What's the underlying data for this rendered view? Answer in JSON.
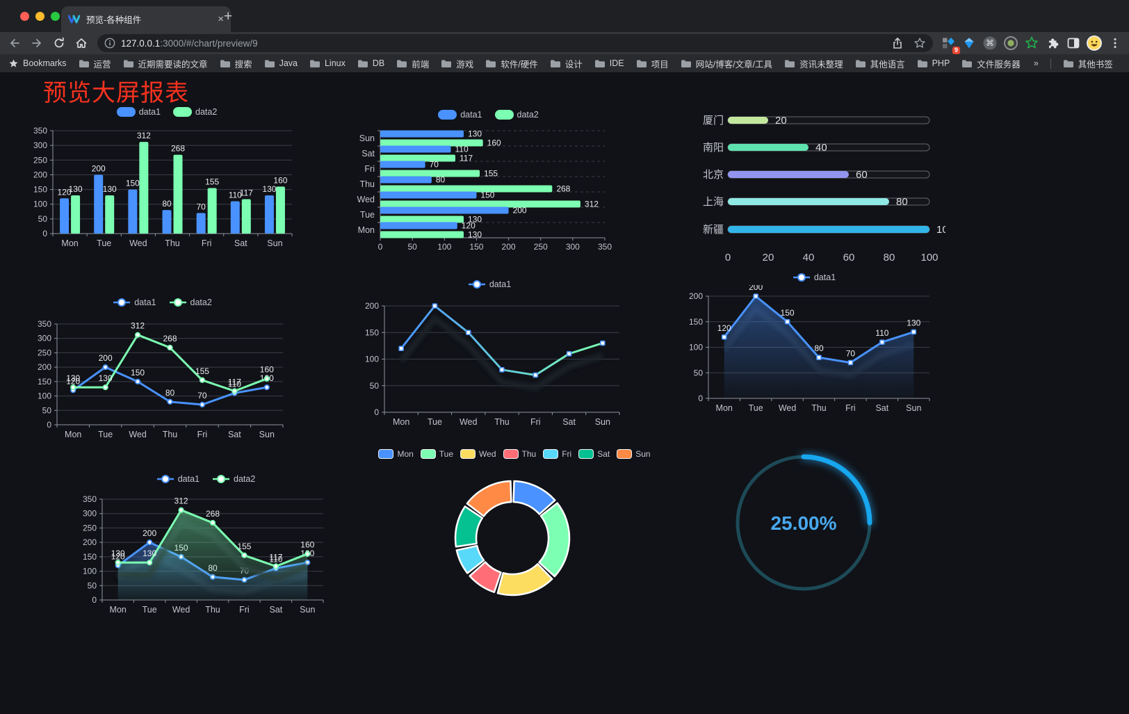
{
  "browser": {
    "tab": {
      "title": "预览-各种组件",
      "close_label": "×",
      "new_tab_label": "+"
    },
    "url": {
      "host": "127.0.0.1",
      "rest": ":3000/#/chart/preview/9"
    },
    "extension_badge": "9",
    "bookmarks_label": "Bookmarks",
    "bookmarks": [
      "运营",
      "近期需要读的文章",
      "搜索",
      "Java",
      "Linux",
      "DB",
      "前端",
      "游戏",
      "软件/硬件",
      "设计",
      "IDE",
      "项目",
      "网站/博客/文章/工具",
      "资讯未整理",
      "其他语言",
      "PHP",
      "文件服务器"
    ],
    "bookmarks_overflow": "»",
    "other_bookmarks": "其他书签"
  },
  "page": {
    "title": "预览大屏报表"
  },
  "colors": {
    "blue": "#4992ff",
    "green": "#7cffb2",
    "axis": "#9094a0",
    "grid": "#3d3f4a",
    "label": "#c3c5cd",
    "value": "#e9eaee",
    "title_red": "#f5321f",
    "gauge": "#17a7ee",
    "gauge_track": "#1d4a57",
    "gauge_text": "#49a9ef"
  },
  "chart_data": [
    {
      "id": "grouped-bar",
      "type": "bar",
      "categories": [
        "Mon",
        "Tue",
        "Wed",
        "Thu",
        "Fri",
        "Sat",
        "Sun"
      ],
      "series": [
        {
          "name": "data1",
          "color": "#4992ff",
          "values": [
            120,
            200,
            150,
            80,
            70,
            110,
            130
          ]
        },
        {
          "name": "data2",
          "color": "#7cffb2",
          "values": [
            130,
            130,
            312,
            268,
            155,
            117,
            160
          ]
        }
      ],
      "ylim": [
        0,
        350
      ],
      "yticks": [
        0,
        50,
        100,
        150,
        200,
        250,
        300,
        350
      ],
      "legend_position": "top",
      "show_labels": true
    },
    {
      "id": "horizontal-bar",
      "type": "hbar",
      "categories_bottom_to_top": [
        "Mon",
        "Tue",
        "Wed",
        "Thu",
        "Fri",
        "Sat",
        "Sun"
      ],
      "series": [
        {
          "name": "data1",
          "color": "#4992ff",
          "values": [
            120,
            200,
            150,
            80,
            70,
            110,
            130
          ]
        },
        {
          "name": "data2",
          "color": "#7cffb2",
          "values": [
            130,
            130,
            312,
            268,
            155,
            117,
            160
          ]
        }
      ],
      "xlim": [
        0,
        350
      ],
      "xticks": [
        0,
        50,
        100,
        150,
        200,
        250,
        300,
        350
      ],
      "legend_position": "top",
      "show_labels": true
    },
    {
      "id": "city-progress",
      "type": "progress",
      "max": 100,
      "items": [
        {
          "label": "厦门",
          "value": 20,
          "color": "#c4e79e"
        },
        {
          "label": "南阳",
          "value": 40,
          "color": "#5ee2ae"
        },
        {
          "label": "北京",
          "value": 60,
          "color": "#9295ef"
        },
        {
          "label": "上海",
          "value": 80,
          "color": "#8fe9e4"
        },
        {
          "label": "新疆",
          "value": 100,
          "color": "#31b5e9"
        }
      ],
      "xticks": [
        0,
        20,
        40,
        60,
        80,
        100
      ]
    },
    {
      "id": "dual-line",
      "type": "line",
      "categories": [
        "Mon",
        "Tue",
        "Wed",
        "Thu",
        "Fri",
        "Sat",
        "Sun"
      ],
      "series": [
        {
          "name": "data1",
          "color": "#4992ff",
          "symbol": "circle",
          "values": [
            120,
            200,
            150,
            80,
            70,
            110,
            130
          ]
        },
        {
          "name": "data2",
          "color": "#7cffb2",
          "symbol": "circle",
          "values": [
            130,
            130,
            312,
            268,
            155,
            117,
            160
          ]
        }
      ],
      "ylim": [
        0,
        350
      ],
      "yticks": [
        0,
        50,
        100,
        150,
        200,
        250,
        300,
        350
      ],
      "legend_position": "top",
      "show_labels": true,
      "shadow": false
    },
    {
      "id": "gradient-line",
      "type": "line",
      "categories": [
        "Mon",
        "Tue",
        "Wed",
        "Thu",
        "Fri",
        "Sat",
        "Sun"
      ],
      "series": [
        {
          "name": "data1",
          "color": "#4992ff",
          "color_end": "#7cffb2",
          "gradient": true,
          "symbol": "rect",
          "values": [
            120,
            200,
            150,
            80,
            70,
            110,
            130
          ]
        }
      ],
      "ylim": [
        0,
        200
      ],
      "yticks": [
        0,
        50,
        100,
        150,
        200
      ],
      "legend_position": "top",
      "show_labels": false,
      "shadow": true
    },
    {
      "id": "area-line",
      "type": "line",
      "categories": [
        "Mon",
        "Tue",
        "Wed",
        "Thu",
        "Fri",
        "Sat",
        "Sun"
      ],
      "series": [
        {
          "name": "data1",
          "color": "#4992ff",
          "area": true,
          "symbol": "rect",
          "values": [
            120,
            200,
            150,
            80,
            70,
            110,
            130
          ]
        }
      ],
      "ylim": [
        0,
        200
      ],
      "yticks": [
        0,
        50,
        100,
        150,
        200
      ],
      "legend_position": "top",
      "show_labels": true,
      "shadow": true
    },
    {
      "id": "dual-area",
      "type": "line",
      "categories": [
        "Mon",
        "Tue",
        "Wed",
        "Thu",
        "Fri",
        "Sat",
        "Sun"
      ],
      "series": [
        {
          "name": "data1",
          "color": "#4992ff",
          "area": true,
          "symbol": "circle",
          "values": [
            120,
            200,
            150,
            80,
            70,
            110,
            130
          ]
        },
        {
          "name": "data2",
          "color": "#7cffb2",
          "area": true,
          "symbol": "circle",
          "values": [
            130,
            130,
            312,
            268,
            155,
            117,
            160
          ]
        }
      ],
      "ylim": [
        0,
        350
      ],
      "yticks": [
        0,
        50,
        100,
        150,
        200,
        250,
        300,
        350
      ],
      "legend_position": "top",
      "show_labels": true,
      "shadow": true
    },
    {
      "id": "weekday-donut",
      "type": "pie",
      "categories": [
        "Mon",
        "Tue",
        "Wed",
        "Thu",
        "Fri",
        "Sat",
        "Sun"
      ],
      "values": [
        120,
        200,
        150,
        80,
        70,
        110,
        130
      ],
      "colors": [
        "#4992ff",
        "#7cffb2",
        "#fddd60",
        "#ff6e76",
        "#58d9f9",
        "#05c091",
        "#ff8a45"
      ],
      "legend_position": "top"
    },
    {
      "id": "percent-gauge",
      "type": "gauge",
      "value": 25,
      "max": 100,
      "label": "25.00%"
    }
  ]
}
